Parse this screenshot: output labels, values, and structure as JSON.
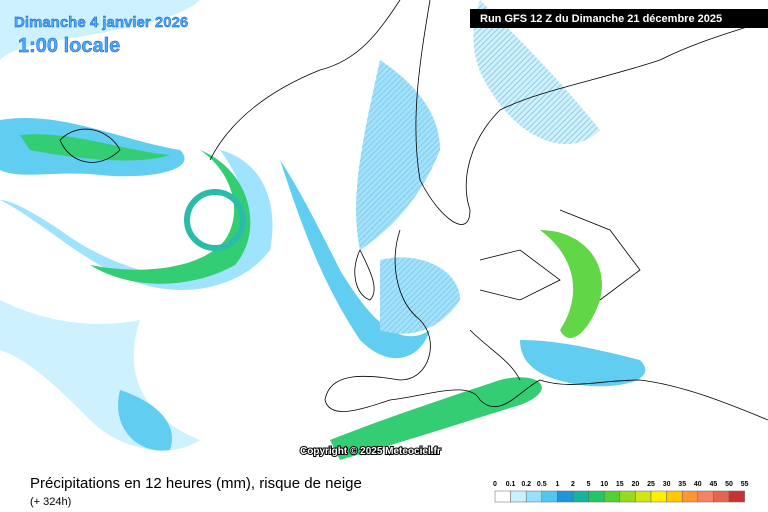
{
  "header": {
    "date": "Dimanche 4 janvier 2026",
    "time": "1:00 locale",
    "run": "Run GFS 12 Z du Dimanche 21 décembre 2025"
  },
  "copyright": "Copyright © 2025 Meteociel.fr",
  "footer": {
    "title": "Précipitations en 12 heures (mm), risque de neige",
    "lead": "(+ 324h)"
  },
  "legend": {
    "labels": [
      "0",
      "0.1",
      "0.2",
      "0.5",
      "1",
      "2",
      "5",
      "10",
      "15",
      "20",
      "25",
      "30",
      "35",
      "40",
      "45",
      "50",
      "55"
    ],
    "colors": [
      "#ffffff",
      "#c8f0ff",
      "#96e1ff",
      "#50c8f0",
      "#1e96dc",
      "#14b4a0",
      "#1ec864",
      "#50d232",
      "#96dc1e",
      "#d2e614",
      "#fff000",
      "#ffc800",
      "#ff9632",
      "#f58264",
      "#e66450",
      "#c83232"
    ]
  }
}
